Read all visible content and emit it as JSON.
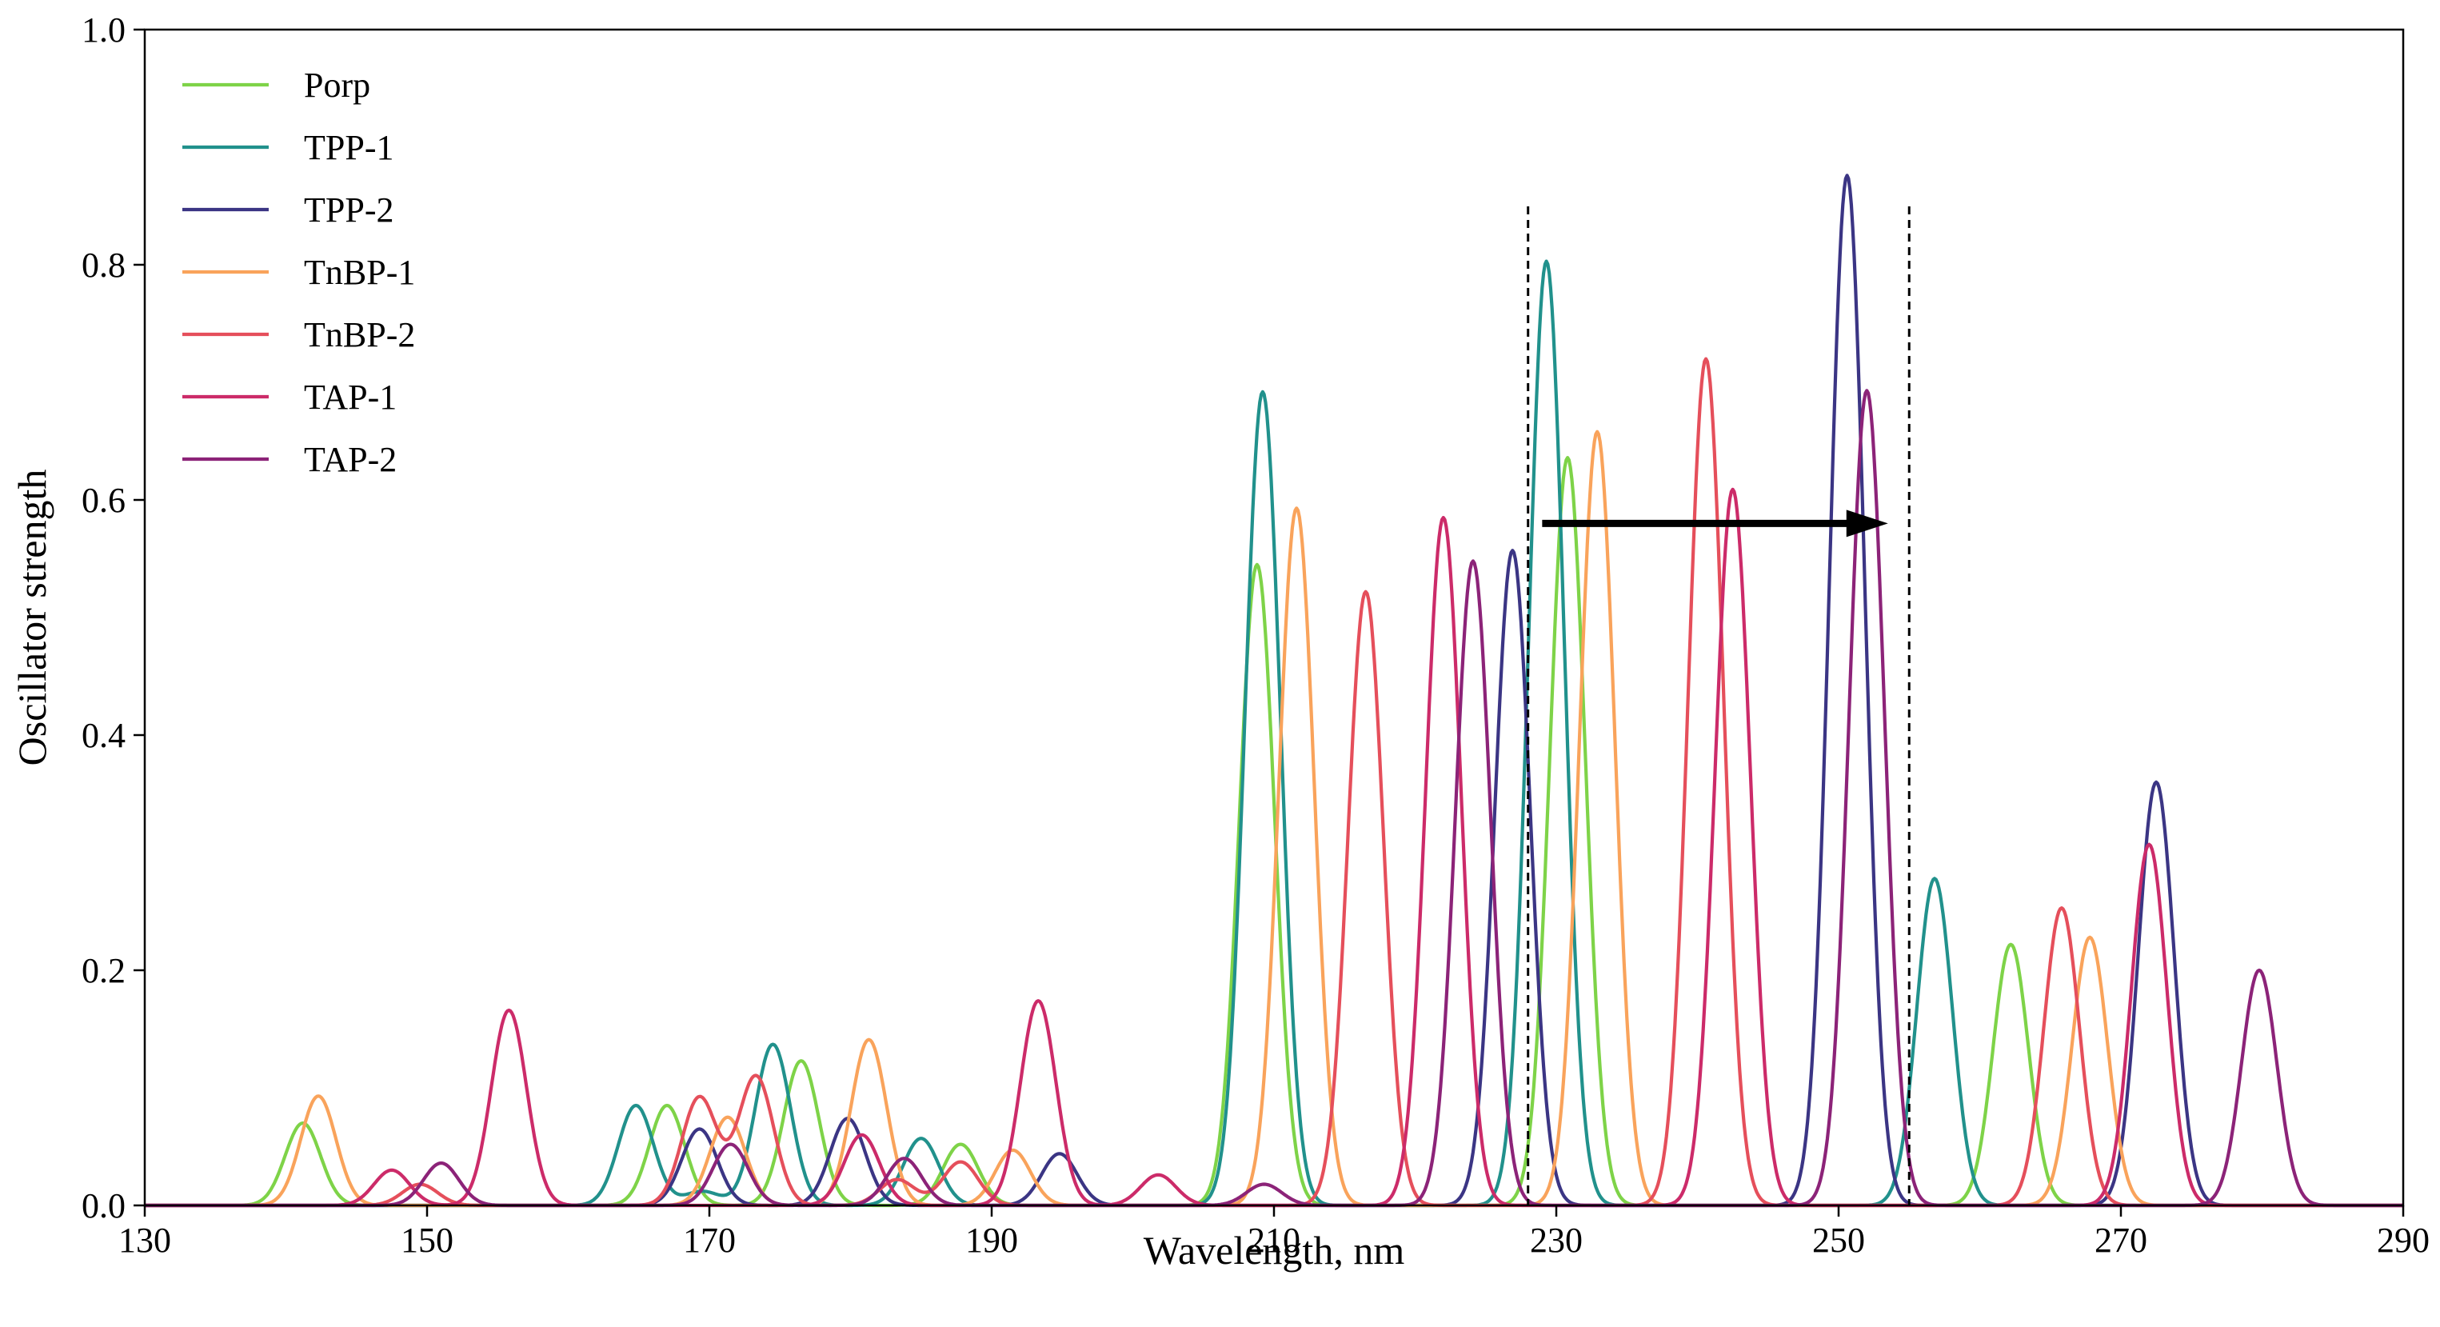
{
  "chart_data": {
    "type": "line",
    "title": "",
    "xlabel": "Wavelength, nm",
    "ylabel": "Oscillator strength",
    "xlim": [
      130,
      290
    ],
    "ylim": [
      0.0,
      1.0
    ],
    "xticks": [
      130,
      150,
      170,
      190,
      210,
      230,
      250,
      270,
      290
    ],
    "xtick_labels": [
      "130",
      "150",
      "170",
      "190",
      "210",
      "230",
      "250",
      "270",
      "290"
    ],
    "yticks": [
      0.0,
      0.2,
      0.4,
      0.6,
      0.8,
      1.0
    ],
    "ytick_labels": [
      "0.0",
      "0.2",
      "0.4",
      "0.6",
      "0.8",
      "1.0"
    ],
    "grid": false,
    "legend_position": "top-left",
    "peak_width_sigma_nm": 1.25,
    "series": [
      {
        "name": "Porp",
        "color": "#7ed348",
        "peaks": [
          [
            141.2,
            0.07
          ],
          [
            167.0,
            0.085
          ],
          [
            176.5,
            0.123
          ],
          [
            187.8,
            0.052
          ],
          [
            208.8,
            0.545
          ],
          [
            230.8,
            0.636
          ],
          [
            262.2,
            0.222
          ]
        ]
      },
      {
        "name": "TPP-1",
        "color": "#21918c",
        "peaks": [
          [
            164.8,
            0.085
          ],
          [
            169.5,
            0.012
          ],
          [
            174.5,
            0.137
          ],
          [
            185.0,
            0.057
          ],
          [
            209.2,
            0.692
          ],
          [
            229.3,
            0.803
          ],
          [
            256.8,
            0.278
          ]
        ]
      },
      {
        "name": "TPP-2",
        "color": "#3b3584",
        "peaks": [
          [
            169.3,
            0.065
          ],
          [
            179.8,
            0.074
          ],
          [
            194.8,
            0.044
          ],
          [
            226.9,
            0.557
          ],
          [
            250.6,
            0.876
          ],
          [
            272.5,
            0.36
          ]
        ]
      },
      {
        "name": "TnBP-1",
        "color": "#f9a35b",
        "peaks": [
          [
            142.3,
            0.093
          ],
          [
            171.3,
            0.075
          ],
          [
            181.3,
            0.141
          ],
          [
            191.5,
            0.047
          ],
          [
            211.6,
            0.593
          ],
          [
            232.9,
            0.658
          ],
          [
            267.8,
            0.228
          ]
        ]
      },
      {
        "name": "TnBP-2",
        "color": "#e54f5b",
        "peaks": [
          [
            149.5,
            0.018
          ],
          [
            169.3,
            0.092
          ],
          [
            173.3,
            0.11
          ],
          [
            183.3,
            0.022
          ],
          [
            187.8,
            0.037
          ],
          [
            216.5,
            0.522
          ],
          [
            240.6,
            0.72
          ],
          [
            265.8,
            0.253
          ]
        ]
      },
      {
        "name": "TAP-1",
        "color": "#cc2b69",
        "peaks": [
          [
            147.5,
            0.03
          ],
          [
            155.8,
            0.166
          ],
          [
            180.8,
            0.06
          ],
          [
            193.3,
            0.174
          ],
          [
            201.8,
            0.026
          ],
          [
            222.0,
            0.585
          ],
          [
            242.5,
            0.609
          ],
          [
            272.0,
            0.307
          ]
        ]
      },
      {
        "name": "TAP-2",
        "color": "#8c2378",
        "peaks": [
          [
            151.0,
            0.036
          ],
          [
            171.5,
            0.052
          ],
          [
            183.8,
            0.04
          ],
          [
            209.3,
            0.018
          ],
          [
            224.1,
            0.548
          ],
          [
            252.0,
            0.693
          ],
          [
            279.8,
            0.2
          ]
        ]
      }
    ],
    "annotations": {
      "dashed_vlines": [
        228.0,
        255.0
      ],
      "arrow": {
        "from": [
          229.0,
          0.58
        ],
        "to": [
          253.5,
          0.58
        ],
        "color": "#000000"
      }
    }
  }
}
